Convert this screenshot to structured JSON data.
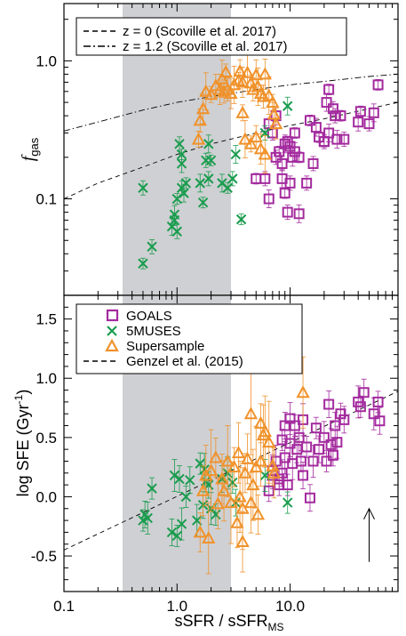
{
  "chart_data": [
    {
      "type": "scatter",
      "panel": "top",
      "x_scale": "log",
      "y_scale": "log",
      "xlim": [
        0.1,
        90
      ],
      "ylim": [
        0.02,
        2.6
      ],
      "ylabel": "f",
      "ylabel_sub": "gas",
      "yticks": [
        {
          "value": 1.0,
          "label": "1.0"
        },
        {
          "value": 0.1,
          "label": "0.1"
        }
      ],
      "shaded_band": [
        0.33,
        3.0
      ],
      "legend": {
        "position": "top-left",
        "entries": [
          {
            "label": "z = 0 (Scoville et al. 2017)",
            "style": "dashed"
          },
          {
            "label": "z = 1.2 (Scoville et al. 2017)",
            "style": "dash-dot"
          }
        ]
      },
      "lines": [
        {
          "style": "dashed",
          "x": [
            0.1,
            0.2,
            0.5,
            1,
            2,
            5,
            10,
            20,
            50,
            90
          ],
          "y": [
            0.1,
            0.13,
            0.17,
            0.21,
            0.25,
            0.3,
            0.34,
            0.38,
            0.45,
            0.5
          ]
        },
        {
          "style": "dash-dot",
          "x": [
            0.1,
            0.2,
            0.5,
            1,
            2,
            5,
            10,
            20,
            50,
            90
          ],
          "y": [
            0.31,
            0.36,
            0.44,
            0.5,
            0.55,
            0.62,
            0.67,
            0.71,
            0.77,
            0.8
          ]
        }
      ],
      "series": [
        {
          "name": "GOALS",
          "marker": "square",
          "color": "#a32a9e",
          "points": [
            [
              6.5,
              0.35
            ],
            [
              7,
              0.3
            ],
            [
              7.5,
              0.4
            ],
            [
              8,
              0.22
            ],
            [
              8.5,
              0.18
            ],
            [
              9,
              0.25
            ],
            [
              9.5,
              0.26
            ],
            [
              10,
              0.24
            ],
            [
              10.5,
              0.2
            ],
            [
              11,
              0.3
            ],
            [
              7.5,
              0.2
            ],
            [
              8.5,
              0.14
            ],
            [
              9,
              0.11
            ],
            [
              10,
              0.13
            ],
            [
              12,
              0.078
            ],
            [
              15,
              0.37
            ],
            [
              16,
              0.18
            ],
            [
              17,
              0.33
            ],
            [
              18,
              0.28
            ],
            [
              20,
              0.26
            ],
            [
              21,
              0.5
            ],
            [
              22,
              0.62
            ],
            [
              24,
              0.45
            ],
            [
              22,
              0.3
            ],
            [
              20,
              0.26
            ],
            [
              25,
              0.4
            ],
            [
              26,
              0.27
            ],
            [
              28,
              0.4
            ],
            [
              30,
              0.27
            ],
            [
              40,
              0.36
            ],
            [
              42,
              0.43
            ],
            [
              50,
              0.35
            ],
            [
              55,
              0.42
            ],
            [
              60,
              0.67
            ],
            [
              6,
              0.14
            ],
            [
              6.5,
              0.1
            ],
            [
              5,
              0.14
            ],
            [
              9.5,
              0.08
            ],
            [
              11,
              0.22
            ],
            [
              12,
              0.2
            ],
            [
              14,
              0.13
            ]
          ]
        },
        {
          "name": "5MUSES",
          "marker": "x",
          "color": "#1a9c4e",
          "points": [
            [
              0.5,
              0.034
            ],
            [
              0.6,
              0.045
            ],
            [
              0.9,
              0.063
            ],
            [
              0.95,
              0.07
            ],
            [
              1.0,
              0.058
            ],
            [
              0.95,
              0.077
            ],
            [
              1.0,
              0.1
            ],
            [
              1.1,
              0.12
            ],
            [
              1.15,
              0.11
            ],
            [
              1.1,
              0.21
            ],
            [
              1.05,
              0.25
            ],
            [
              1.1,
              0.18
            ],
            [
              1.2,
              0.13
            ],
            [
              0.5,
              0.12
            ],
            [
              1.6,
              0.13
            ],
            [
              1.7,
              0.094
            ],
            [
              1.8,
              0.19
            ],
            [
              1.9,
              0.25
            ],
            [
              2.0,
              0.19
            ],
            [
              1.9,
              0.14
            ],
            [
              2.5,
              0.13
            ],
            [
              2.8,
              0.12
            ],
            [
              3.1,
              0.14
            ],
            [
              3.3,
              0.21
            ],
            [
              3.7,
              0.071
            ],
            [
              6,
              0.3
            ],
            [
              9.5,
              0.47
            ]
          ]
        },
        {
          "name": "Supersample",
          "marker": "triangle",
          "color": "#f0922b",
          "points": [
            [
              1.55,
              0.27
            ],
            [
              1.6,
              0.37
            ],
            [
              1.7,
              0.45
            ],
            [
              1.8,
              0.6
            ],
            [
              2.0,
              0.57
            ],
            [
              2.2,
              0.66
            ],
            [
              2.4,
              0.62
            ],
            [
              2.5,
              0.74
            ],
            [
              2.7,
              0.83
            ],
            [
              2.8,
              0.62
            ],
            [
              3.0,
              0.58
            ],
            [
              3.2,
              0.67
            ],
            [
              3.5,
              0.72
            ],
            [
              3.6,
              0.84
            ],
            [
              3.8,
              0.7
            ],
            [
              4.2,
              0.82
            ],
            [
              4.5,
              0.69
            ],
            [
              4.7,
              0.62
            ],
            [
              5.0,
              0.79
            ],
            [
              5.2,
              0.65
            ],
            [
              5.5,
              0.58
            ],
            [
              5.8,
              0.55
            ],
            [
              6.0,
              0.8
            ],
            [
              6.5,
              0.56
            ],
            [
              7.0,
              0.5
            ],
            [
              7.2,
              0.41
            ],
            [
              7.5,
              0.35
            ],
            [
              4.0,
              0.27
            ],
            [
              4.5,
              0.25
            ],
            [
              5.0,
              0.28
            ],
            [
              5.5,
              0.23
            ],
            [
              6.0,
              0.21
            ],
            [
              3.8,
              0.42
            ],
            [
              2.6,
              0.6
            ]
          ]
        }
      ]
    },
    {
      "type": "scatter",
      "panel": "bottom",
      "x_scale": "log",
      "y_scale": "linear",
      "xlim": [
        0.1,
        90
      ],
      "ylim": [
        -0.8,
        1.7
      ],
      "xlabel": "sSFR / sSFR",
      "xlabel_sub": "MS",
      "ylabel": "log SFE (Gyr",
      "ylabel_sup": "-1",
      "ylabel_close": ")",
      "xticks": [
        {
          "value": 0.1,
          "label": "0.1"
        },
        {
          "value": 1,
          "label": "1.0"
        },
        {
          "value": 10,
          "label": "10.0"
        }
      ],
      "yticks": [
        {
          "value": -0.5,
          "label": "-0.5"
        },
        {
          "value": 0.0,
          "label": "0.0"
        },
        {
          "value": 0.5,
          "label": "0.5"
        },
        {
          "value": 1.0,
          "label": "1.0"
        },
        {
          "value": 1.5,
          "label": "1.5"
        }
      ],
      "shaded_band": [
        0.33,
        3.0
      ],
      "legend": {
        "position": "top-left",
        "entries": [
          {
            "label": "GOALS",
            "marker": "square"
          },
          {
            "label": "5MUSES",
            "marker": "x"
          },
          {
            "label": "Supersample",
            "marker": "triangle"
          },
          {
            "label": "Genzel et al. (2015)",
            "style": "dashed"
          }
        ]
      },
      "lines": [
        {
          "style": "dashed",
          "x": [
            0.1,
            90
          ],
          "y": [
            -0.45,
            0.89
          ]
        }
      ],
      "arrow": {
        "x": 50,
        "y_from": -0.55,
        "y_to": -0.1
      },
      "series": [
        {
          "name": "GOALS",
          "marker": "square",
          "color": "#a32a9e",
          "points": [
            [
              6.5,
              0.05
            ],
            [
              7,
              0.18
            ],
            [
              7.5,
              0.3
            ],
            [
              8,
              0.15
            ],
            [
              8.5,
              0.2
            ],
            [
              9,
              0.33
            ],
            [
              9.5,
              0.1
            ],
            [
              10,
              0.45
            ],
            [
              10.5,
              0.28
            ],
            [
              11,
              0.6
            ],
            [
              11.5,
              0.4
            ],
            [
              12,
              0.5
            ],
            [
              12.5,
              0.3
            ],
            [
              13,
              0.18
            ],
            [
              13,
              0.65
            ],
            [
              14,
              0.42
            ],
            [
              15,
              -0.01
            ],
            [
              16,
              0.3
            ],
            [
              17,
              0.58
            ],
            [
              18,
              0.4
            ],
            [
              20,
              0.5
            ],
            [
              21,
              0.3
            ],
            [
              22,
              0.78
            ],
            [
              23,
              0.44
            ],
            [
              24,
              0.35
            ],
            [
              25,
              0.6
            ],
            [
              26,
              0.46
            ],
            [
              28,
              0.7
            ],
            [
              30,
              0.65
            ],
            [
              40,
              0.8
            ],
            [
              42,
              0.76
            ],
            [
              45,
              0.88
            ],
            [
              55,
              0.7
            ],
            [
              60,
              0.8
            ],
            [
              62,
              0.64
            ],
            [
              7,
              0.22
            ],
            [
              8,
              0.1
            ],
            [
              9,
              0.6
            ],
            [
              10,
              0.66
            ],
            [
              8.5,
              0.48
            ]
          ]
        },
        {
          "name": "5MUSES",
          "marker": "x",
          "color": "#1a9c4e",
          "points": [
            [
              0.5,
              -0.2
            ],
            [
              0.52,
              -0.15
            ],
            [
              0.55,
              -0.18
            ],
            [
              0.6,
              0.07
            ],
            [
              0.9,
              -0.3
            ],
            [
              0.95,
              0.18
            ],
            [
              1.0,
              -0.33
            ],
            [
              1.05,
              0.15
            ],
            [
              1.1,
              -0.23
            ],
            [
              1.2,
              0.0
            ],
            [
              1.3,
              0.14
            ],
            [
              1.5,
              -0.2
            ],
            [
              1.6,
              0.28
            ],
            [
              1.7,
              -0.07
            ],
            [
              1.75,
              0.23
            ],
            [
              1.8,
              0.13
            ],
            [
              1.9,
              0.1
            ],
            [
              2.0,
              -0.1
            ],
            [
              2.2,
              -0.15
            ],
            [
              2.5,
              0.15
            ],
            [
              2.8,
              0.2
            ],
            [
              3.1,
              0.12
            ],
            [
              3.3,
              -0.05
            ],
            [
              6,
              0.18
            ],
            [
              9.5,
              -0.05
            ]
          ]
        },
        {
          "name": "Supersample",
          "marker": "triangle",
          "color": "#f0922b",
          "points": [
            [
              1.6,
              -0.3
            ],
            [
              1.7,
              0.05
            ],
            [
              1.8,
              0.18
            ],
            [
              1.9,
              -0.35
            ],
            [
              2.0,
              0.22
            ],
            [
              2.2,
              0.33
            ],
            [
              2.5,
              0.15
            ],
            [
              2.6,
              0.05
            ],
            [
              2.8,
              0.3
            ],
            [
              3.0,
              -0.05
            ],
            [
              3.2,
              0.25
            ],
            [
              3.4,
              -0.22
            ],
            [
              3.5,
              0.37
            ],
            [
              3.6,
              0.0
            ],
            [
              3.8,
              -0.1
            ],
            [
              4.0,
              0.2
            ],
            [
              4.2,
              0.32
            ],
            [
              4.5,
              -0.05
            ],
            [
              4.7,
              0.1
            ],
            [
              5.0,
              0.25
            ],
            [
              5.2,
              -0.15
            ],
            [
              5.5,
              0.3
            ],
            [
              5.8,
              0.52
            ],
            [
              6.0,
              0.55
            ],
            [
              6.5,
              0.46
            ],
            [
              7.0,
              0.26
            ],
            [
              7.2,
              0.2
            ],
            [
              3.8,
              -0.38
            ],
            [
              13,
              0.88
            ],
            [
              4.5,
              0.7
            ],
            [
              5.5,
              0.62
            ],
            [
              2.3,
              -0.06
            ]
          ]
        }
      ]
    }
  ]
}
